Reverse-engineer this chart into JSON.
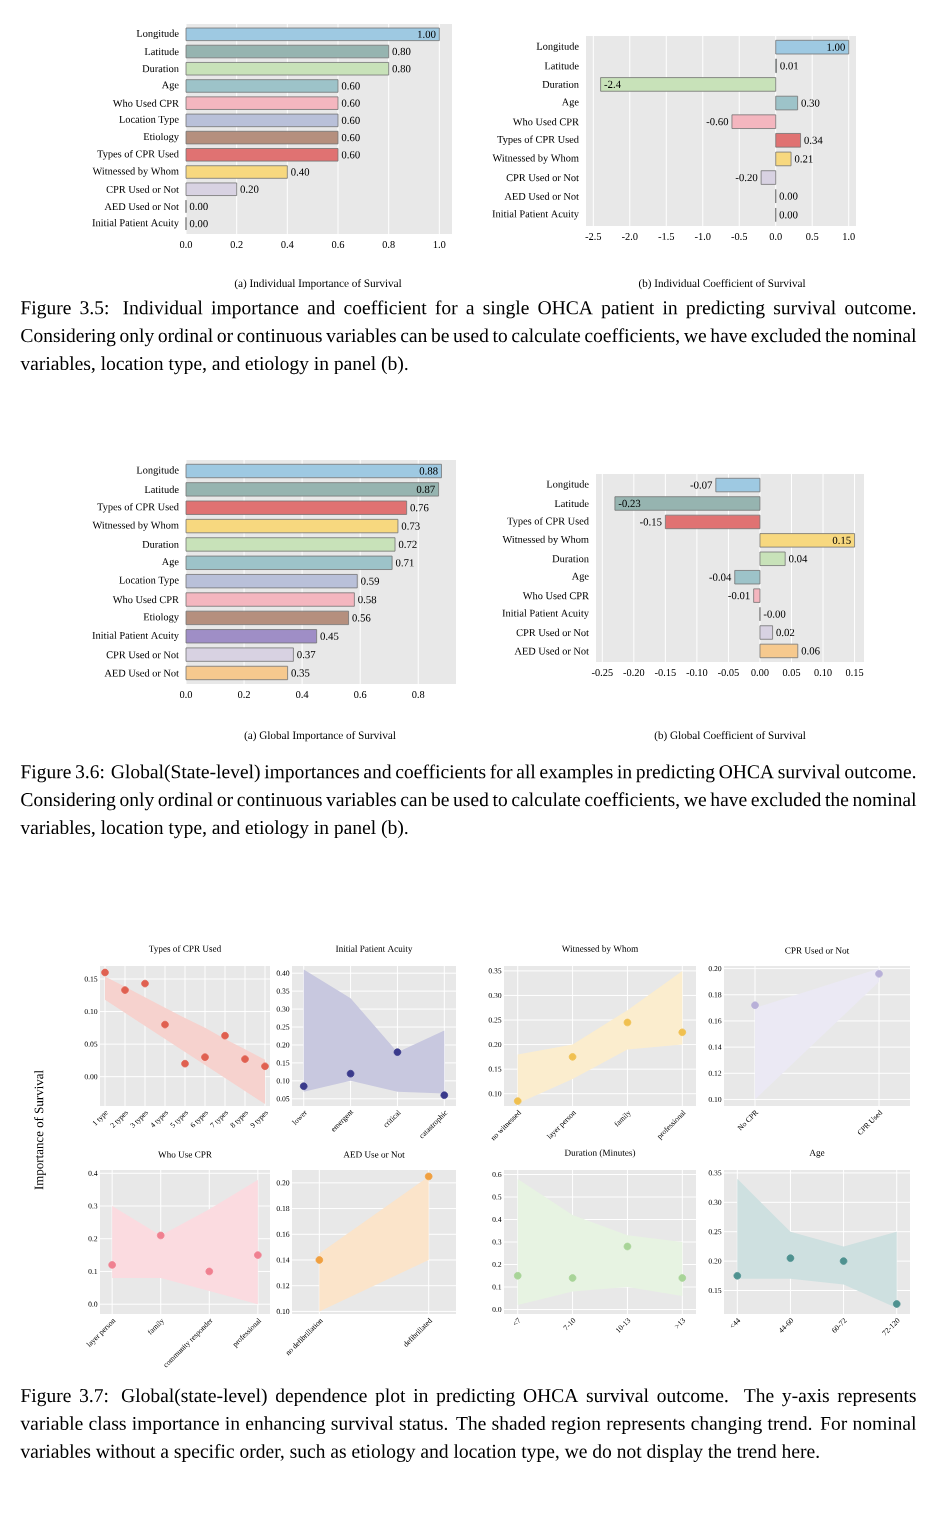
{
  "chart_data": [
    {
      "type": "bar",
      "orientation": "horizontal",
      "grid": "x",
      "categories": [
        "Longitude",
        "Latitude",
        "Duration",
        "Age",
        "Who Used CPR",
        "Location Type",
        "Etiology",
        "Types of CPR Used",
        "Witnessed by Whom",
        "CPR Used or Not",
        "AED Used or Not",
        "Initial Patient Acuity"
      ],
      "values": [
        1.0,
        0.8,
        0.8,
        0.6,
        0.6,
        0.6,
        0.6,
        0.6,
        0.4,
        0.2,
        0.0,
        0.0
      ],
      "value_labels": [
        "1.00",
        "0.80",
        "0.80",
        "0.60",
        "0.60",
        "0.60",
        "0.60",
        "0.60",
        "0.40",
        "0.20",
        "0.00",
        "0.00"
      ],
      "colors": [
        "#9ec9e2",
        "#96b4b0",
        "#c8e2b9",
        "#9dc3c9",
        "#f4b6bf",
        "#b9c0d9",
        "#b58f7e",
        "#e07272",
        "#f7d87f",
        "#d8d2e2",
        "#f6c98e",
        "#9f8ec6"
      ],
      "xlim": [
        0,
        1.05
      ],
      "xticks": [
        {
          "value": 0,
          "label": "0.0"
        },
        {
          "value": 0.2,
          "label": "0.2"
        },
        {
          "value": 0.4,
          "label": "0.4"
        },
        {
          "value": 0.6,
          "label": "0.6"
        },
        {
          "value": 0.8,
          "label": "0.8"
        },
        {
          "value": 1.0,
          "label": "1.0"
        }
      ],
      "annotations": [
        "(a) Individual Importance of Survival"
      ]
    },
    {
      "type": "bar",
      "orientation": "horizontal",
      "grid": "x",
      "categories": [
        "Longitude",
        "Latitude",
        "Duration",
        "Age",
        "Who Used CPR",
        "Types of CPR Used",
        "Witnessed by Whom",
        "CPR Used or Not",
        "AED Used or Not",
        "Initial Patient Acuity"
      ],
      "values": [
        1.0,
        0.01,
        -2.4,
        0.3,
        -0.6,
        0.34,
        0.21,
        -0.2,
        0.0,
        0.0
      ],
      "value_labels": [
        "1.00",
        "0.01",
        "-2.4",
        "0.30",
        "-0.60",
        "0.34",
        "0.21",
        "-0.20",
        "0.00",
        "0.00"
      ],
      "colors": [
        "#9ec9e2",
        "#96b4b0",
        "#c8e2b9",
        "#9dc3c9",
        "#f4b6bf",
        "#e07272",
        "#f7d87f",
        "#d8d2e2",
        "#f6c98e",
        "#9f8ec6"
      ],
      "xlim": [
        -2.6,
        1.1
      ],
      "xticks": [
        {
          "value": -2.5,
          "label": "-2.5"
        },
        {
          "value": -2.0,
          "label": "-2.0"
        },
        {
          "value": -1.5,
          "label": "-1.5"
        },
        {
          "value": -1.0,
          "label": "-1.0"
        },
        {
          "value": -0.5,
          "label": "-0.5"
        },
        {
          "value": 0,
          "label": "0.0"
        },
        {
          "value": 0.5,
          "label": "0.5"
        },
        {
          "value": 1.0,
          "label": "1.0"
        }
      ],
      "annotations": [
        "(b) Individual Coefficient of Survival",
        "Figure 3.5: Individual importance and coefficient for a single OHCA patient in predicting survival outcome. Considering only ordinal or continuous variables can be used to calculate coefficients, we have excluded the nominal variables, location type, and etiology in panel (b)."
      ]
    },
    {
      "type": "bar",
      "orientation": "horizontal",
      "grid": "x",
      "categories": [
        "Longitude",
        "Latitude",
        "Types of CPR Used",
        "Witnessed by Whom",
        "Duration",
        "Age",
        "Location Type",
        "Who Used CPR",
        "Etiology",
        "Initial Patient Acuity",
        "CPR Used or Not",
        "AED Used or Not"
      ],
      "values": [
        0.88,
        0.87,
        0.76,
        0.73,
        0.72,
        0.71,
        0.59,
        0.58,
        0.56,
        0.45,
        0.37,
        0.35
      ],
      "value_labels": [
        "0.88",
        "0.87",
        "0.76",
        "0.73",
        "0.72",
        "0.71",
        "0.59",
        "0.58",
        "0.56",
        "0.45",
        "0.37",
        "0.35"
      ],
      "colors": [
        "#9ec9e2",
        "#96b4b0",
        "#e07272",
        "#f7d87f",
        "#c8e2b9",
        "#9dc3c9",
        "#b9c0d9",
        "#f4b6bf",
        "#b58f7e",
        "#9f8ec6",
        "#d8d2e2",
        "#f6c98e"
      ],
      "xlim": [
        0,
        0.93
      ],
      "xticks": [
        {
          "value": 0,
          "label": "0.0"
        },
        {
          "value": 0.2,
          "label": "0.2"
        },
        {
          "value": 0.4,
          "label": "0.4"
        },
        {
          "value": 0.6,
          "label": "0.6"
        },
        {
          "value": 0.8,
          "label": "0.8"
        }
      ],
      "annotations": [
        "(a) Global Importance of Survival"
      ]
    },
    {
      "type": "bar",
      "orientation": "horizontal",
      "grid": "x",
      "categories": [
        "Longitude",
        "Latitude",
        "Types of CPR Used",
        "Witnessed by Whom",
        "Duration",
        "Age",
        "Who Used CPR",
        "Initial Patient Acuity",
        "CPR Used or Not",
        "AED Used or Not"
      ],
      "values": [
        -0.07,
        -0.23,
        -0.15,
        0.15,
        0.04,
        -0.04,
        -0.01,
        0,
        0.02,
        0.06
      ],
      "value_labels": [
        "-0.07",
        "-0.23",
        "-0.15",
        "0.15",
        "0.04",
        "-0.04",
        "-0.01",
        "-0.00",
        "0.02",
        "0.06"
      ],
      "colors": [
        "#9ec9e2",
        "#96b4b0",
        "#e07272",
        "#f7d87f",
        "#c8e2b9",
        "#9dc3c9",
        "#f4b6bf",
        "#9f8ec6",
        "#d8d2e2",
        "#f6c98e"
      ],
      "xlim": [
        -0.26,
        0.165
      ],
      "xticks": [
        {
          "value": -0.25,
          "label": "-0.25"
        },
        {
          "value": -0.2,
          "label": "-0.20"
        },
        {
          "value": -0.15,
          "label": "-0.15"
        },
        {
          "value": -0.1,
          "label": "-0.10"
        },
        {
          "value": -0.05,
          "label": "-0.05"
        },
        {
          "value": 0,
          "label": "0.00"
        },
        {
          "value": 0.05,
          "label": "0.05"
        },
        {
          "value": 0.1,
          "label": "0.10"
        },
        {
          "value": 0.15,
          "label": "0.15"
        }
      ],
      "annotations": [
        "(b) Global Coefficient of Survival",
        "Figure 3.6: Global(State-level) importances and coefficients for all examples in predicting OHCA survival outcome. Considering only ordinal or continuous variables can be used to calculate coefficients, we have excluded the nominal variables, location type, and etiology in panel (b)."
      ]
    },
    {
      "type": "scatter",
      "title": "Types of CPR Used",
      "ylabel": "Importance of Survival",
      "grid": true,
      "marker": "circle",
      "categories": [
        "1 type",
        "2 types",
        "3 types",
        "4 types",
        "5 types",
        "6 types",
        "7 types",
        "8 types",
        "9 types"
      ],
      "series": [
        {
          "color": "#e06050",
          "values": [
            0.16,
            0.133,
            0.143,
            0.08,
            0.02,
            0.03,
            0.063,
            0.027,
            0.016
          ],
          "upper": [
            0.154,
            0.138,
            0.122,
            0.106,
            0.09,
            0.075,
            0.058,
            0.042,
            0.026
          ],
          "lower": [
            0.118,
            0.098,
            0.078,
            0.058,
            0.038,
            0.018,
            -0.002,
            -0.022,
            -0.042
          ]
        }
      ],
      "ylim": [
        -0.045,
        0.17
      ],
      "yticks": [
        {
          "value": 0,
          "label": "0.00"
        },
        {
          "value": 0.05,
          "label": "0.05"
        },
        {
          "value": 0.1,
          "label": "0.10"
        },
        {
          "value": 0.15,
          "label": "0.15"
        }
      ]
    },
    {
      "type": "scatter",
      "title": "Initial Patient Acuity",
      "grid": true,
      "marker": "circle",
      "categories": [
        "lower",
        "emergent",
        "critical",
        "catastrophic"
      ],
      "series": [
        {
          "color": "#3a3a8c",
          "values": [
            0.085,
            0.12,
            0.18,
            0.06
          ],
          "upper": [
            0.41,
            0.33,
            0.18,
            0.24
          ],
          "lower": [
            0.07,
            0.1,
            0.07,
            0.065
          ]
        }
      ],
      "ylim": [
        0.03,
        0.42
      ],
      "yticks": [
        {
          "value": 0.05,
          "label": "0.05"
        },
        {
          "value": 0.1,
          "label": "0.10"
        },
        {
          "value": 0.15,
          "label": "0.15"
        },
        {
          "value": 0.2,
          "label": "0.20"
        },
        {
          "value": 0.25,
          "label": "0.25"
        },
        {
          "value": 0.3,
          "label": "0.30"
        },
        {
          "value": 0.35,
          "label": "0.35"
        },
        {
          "value": 0.4,
          "label": "0.40"
        }
      ]
    },
    {
      "type": "scatter",
      "title": "Witnessed by Whom",
      "grid": true,
      "marker": "circle",
      "categories": [
        "no witnessed",
        "layer person",
        "family",
        "professional"
      ],
      "series": [
        {
          "color": "#f0c050",
          "values": [
            0.085,
            0.175,
            0.245,
            0.225
          ],
          "upper": [
            0.18,
            0.2,
            0.27,
            0.35
          ],
          "lower": [
            0.08,
            0.13,
            0.19,
            0.2
          ]
        }
      ],
      "ylim": [
        0.075,
        0.36
      ],
      "yticks": [
        {
          "value": 0.1,
          "label": "0.10"
        },
        {
          "value": 0.15,
          "label": "0.15"
        },
        {
          "value": 0.2,
          "label": "0.20"
        },
        {
          "value": 0.25,
          "label": "0.25"
        },
        {
          "value": 0.3,
          "label": "0.30"
        },
        {
          "value": 0.35,
          "label": "0.35"
        }
      ]
    },
    {
      "type": "scatter",
      "title": "CPR Used or Not",
      "grid": true,
      "marker": "circle",
      "categories": [
        "No CPR",
        "CPR Used"
      ],
      "series": [
        {
          "color": "#b8b0d8",
          "values": [
            0.172,
            0.196
          ],
          "upper": [
            0.17,
            0.2
          ],
          "lower": [
            0.1,
            0.19
          ]
        }
      ],
      "ylim": [
        0.095,
        0.202
      ],
      "yticks": [
        {
          "value": 0.1,
          "label": "0.10"
        },
        {
          "value": 0.12,
          "label": "0.12"
        },
        {
          "value": 0.14,
          "label": "0.14"
        },
        {
          "value": 0.16,
          "label": "0.16"
        },
        {
          "value": 0.18,
          "label": "0.18"
        },
        {
          "value": 0.2,
          "label": "0.20"
        }
      ]
    },
    {
      "type": "scatter",
      "title": "Who Use CPR",
      "grid": true,
      "marker": "circle",
      "categories": [
        "layer person",
        "family",
        "community responder",
        "professional"
      ],
      "series": [
        {
          "color": "#f08090",
          "values": [
            0.12,
            0.21,
            0.1,
            0.15
          ],
          "upper": [
            0.3,
            0.21,
            0.29,
            0.38
          ],
          "lower": [
            0.08,
            0.08,
            0.04,
            0.0
          ]
        }
      ],
      "ylim": [
        -0.03,
        0.41
      ],
      "yticks": [
        {
          "value": 0,
          "label": "0.0"
        },
        {
          "value": 0.1,
          "label": "0.1"
        },
        {
          "value": 0.2,
          "label": "0.2"
        },
        {
          "value": 0.3,
          "label": "0.3"
        },
        {
          "value": 0.4,
          "label": "0.4"
        }
      ]
    },
    {
      "type": "scatter",
      "title": "AED Use or Not",
      "grid": true,
      "marker": "circle",
      "categories": [
        "no defibrillation",
        "defibrillated"
      ],
      "series": [
        {
          "color": "#f0a040",
          "values": [
            0.14,
            0.205
          ],
          "upper": [
            0.145,
            0.205
          ],
          "lower": [
            0.1,
            0.14
          ]
        }
      ],
      "ylim": [
        0.098,
        0.21
      ],
      "yticks": [
        {
          "value": 0.1,
          "label": "0.10"
        },
        {
          "value": 0.12,
          "label": "0.12"
        },
        {
          "value": 0.14,
          "label": "0.14"
        },
        {
          "value": 0.16,
          "label": "0.16"
        },
        {
          "value": 0.18,
          "label": "0.18"
        },
        {
          "value": 0.2,
          "label": "0.20"
        }
      ]
    },
    {
      "type": "scatter",
      "title": "Duration (Minutes)",
      "grid": true,
      "marker": "circle",
      "categories": [
        "<7",
        "7-10",
        "10-13",
        ">13"
      ],
      "series": [
        {
          "color": "#a8d498",
          "values": [
            0.15,
            0.14,
            0.28,
            0.14
          ],
          "upper": [
            0.58,
            0.42,
            0.33,
            0.3
          ],
          "lower": [
            0.02,
            0.08,
            0.1,
            0.06
          ]
        }
      ],
      "ylim": [
        -0.02,
        0.62
      ],
      "yticks": [
        {
          "value": 0,
          "label": "0.0"
        },
        {
          "value": 0.1,
          "label": "0.1"
        },
        {
          "value": 0.2,
          "label": "0.2"
        },
        {
          "value": 0.3,
          "label": "0.3"
        },
        {
          "value": 0.4,
          "label": "0.4"
        },
        {
          "value": 0.5,
          "label": "0.5"
        },
        {
          "value": 0.6,
          "label": "0.6"
        }
      ]
    },
    {
      "type": "scatter",
      "title": "Age",
      "grid": true,
      "marker": "circle",
      "categories": [
        "<44",
        "44-60",
        "60-72",
        "72-120"
      ],
      "series": [
        {
          "color": "#4f9290",
          "values": [
            0.175,
            0.205,
            0.2,
            0.127
          ],
          "upper": [
            0.34,
            0.25,
            0.225,
            0.25
          ],
          "lower": [
            0.17,
            0.17,
            0.16,
            0.12
          ]
        }
      ],
      "ylim": [
        0.11,
        0.355
      ],
      "yticks": [
        {
          "value": 0.15,
          "label": "0.15"
        },
        {
          "value": 0.2,
          "label": "0.20"
        },
        {
          "value": 0.25,
          "label": "0.25"
        },
        {
          "value": 0.3,
          "label": "0.30"
        },
        {
          "value": 0.35,
          "label": "0.35"
        }
      ],
      "annotations": [
        "Figure 3.7: Global(state-level) dependence plot in predicting OHCA survival outcome. The y-axis represents variable class importance in enhancing survival status. The shaded region represents changing trend. For nominal variables without a specific order, such as etiology and location type, we do not display the trend here."
      ]
    }
  ]
}
